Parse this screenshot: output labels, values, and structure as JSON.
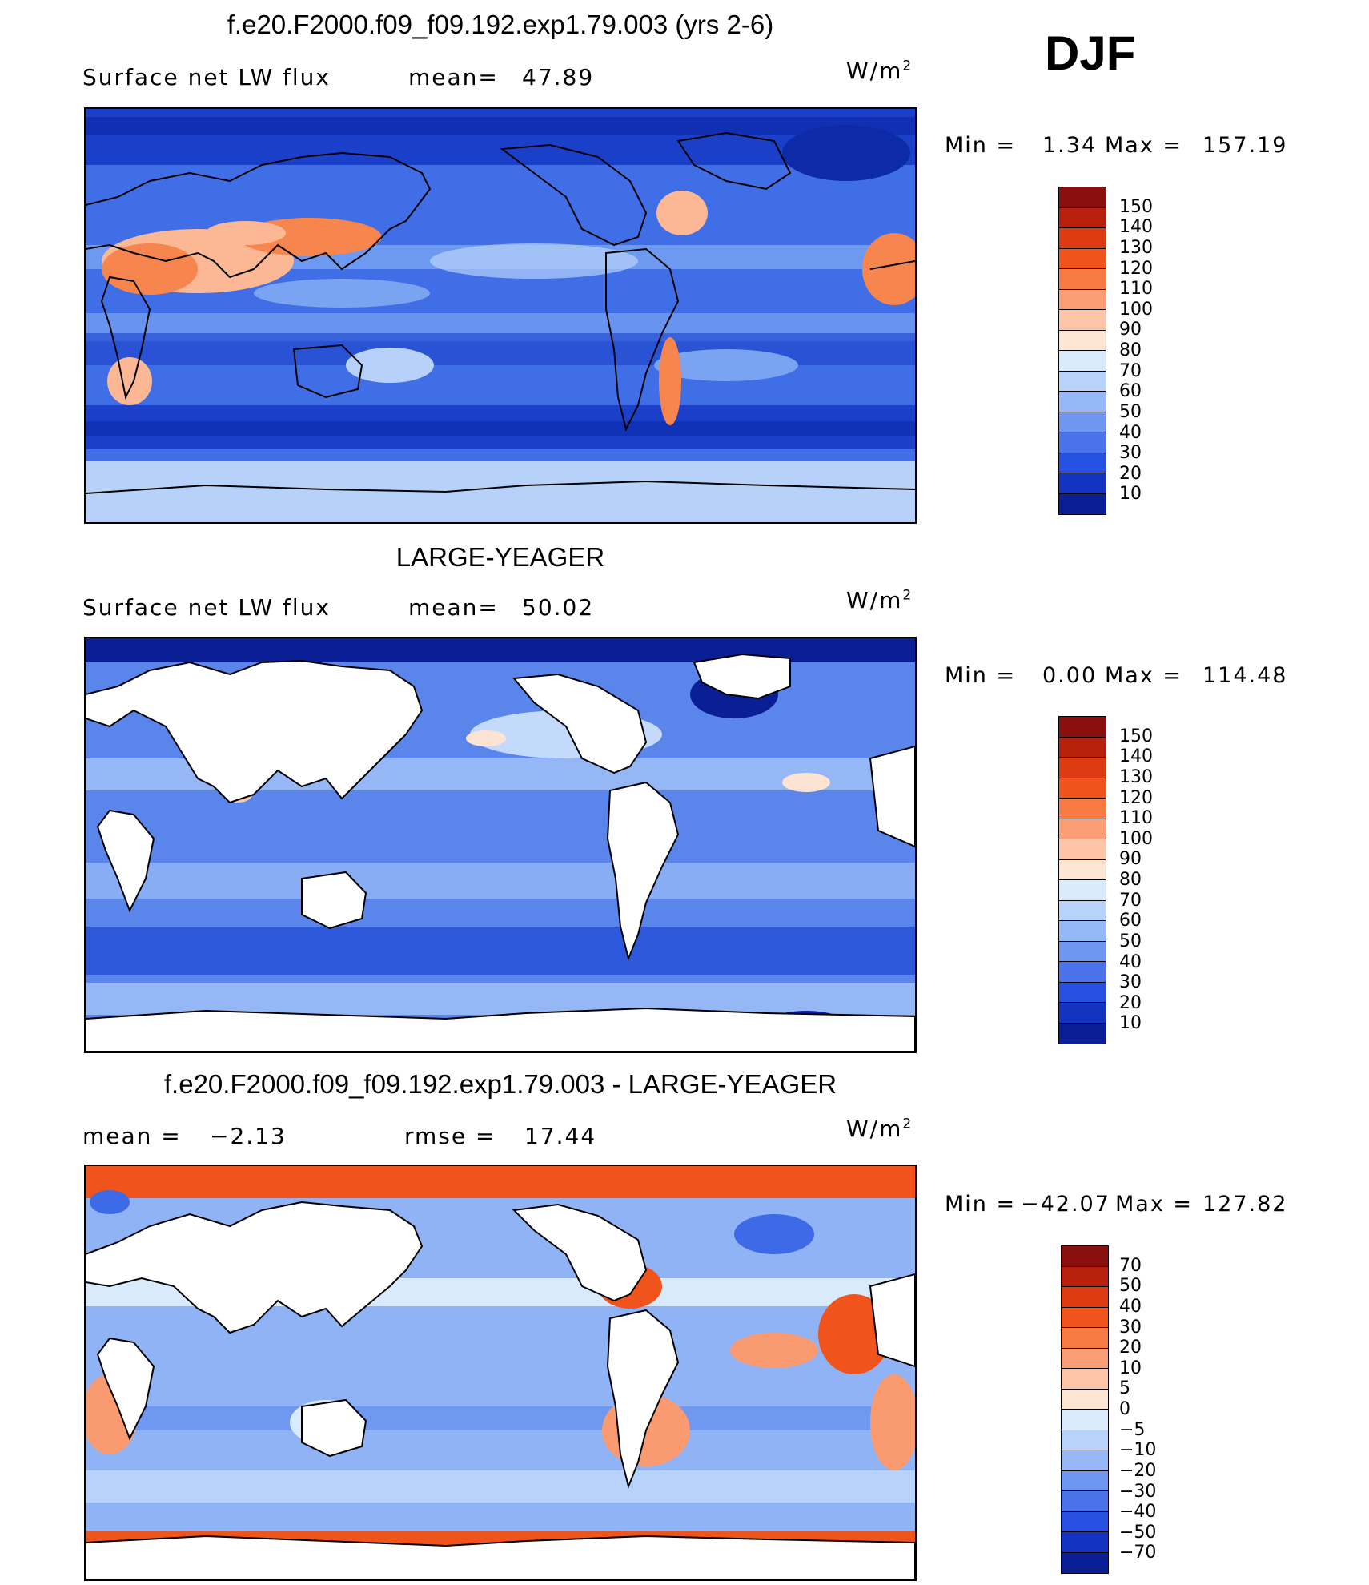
{
  "season": "DJF",
  "panels": [
    {
      "title": "f.e20.F2000.f09_f09.192.exp1.79.003 (yrs 2-6)",
      "left_text": "Surface net LW flux",
      "stat_label": "mean=",
      "stat_value": "47.89",
      "rmse_label": "",
      "rmse_value": "",
      "units": "W/m",
      "units_exp": "2",
      "min_label": "Min =",
      "min_value": "1.34",
      "max_label": "Max =",
      "max_value": "157.19",
      "colorbar_ticks": [
        "150",
        "140",
        "130",
        "120",
        "110",
        "100",
        "90",
        "80",
        "70",
        "60",
        "50",
        "40",
        "30",
        "20",
        "10"
      ],
      "colorbar_colors": [
        "#8a0f0f",
        "#b8200e",
        "#dc3a10",
        "#f0541c",
        "#f77a45",
        "#fb9e76",
        "#fdc4a8",
        "#fde5d4",
        "#d9eafc",
        "#b8d3fb",
        "#96b8f7",
        "#6f96f0",
        "#4a73ea",
        "#2650df",
        "#1433c0",
        "#0a1e96"
      ],
      "map_colors": {
        "base": "#3f6ee6",
        "deep": "#1a3fc8",
        "band": "#7aa4f2",
        "light": "#b7d1fa",
        "hot": "#f7854e",
        "warm": "#fcb795",
        "cold": "#0d2aa8"
      }
    },
    {
      "title": "LARGE-YEAGER",
      "left_text": "Surface net LW flux",
      "stat_label": "mean=",
      "stat_value": "50.02",
      "rmse_label": "",
      "rmse_value": "",
      "units": "W/m",
      "units_exp": "2",
      "min_label": "Min =",
      "min_value": "0.00",
      "max_label": "Max =",
      "max_value": "114.48",
      "colorbar_ticks": [
        "150",
        "140",
        "130",
        "120",
        "110",
        "100",
        "90",
        "80",
        "70",
        "60",
        "50",
        "40",
        "30",
        "20",
        "10"
      ],
      "colorbar_colors": [
        "#8a0f0f",
        "#b8200e",
        "#dc3a10",
        "#f0541c",
        "#f77a45",
        "#fb9e76",
        "#fdc4a8",
        "#fde5d4",
        "#d9eafc",
        "#b8d3fb",
        "#96b8f7",
        "#6f96f0",
        "#4a73ea",
        "#2650df",
        "#1433c0",
        "#0a1e96"
      ],
      "map_colors": {
        "base": "#5a86ec",
        "deep": "#2d58da",
        "band": "#95b7f6",
        "light": "#c4dafb",
        "hot": "#fbc8ad",
        "warm": "#fde3d3",
        "cold": "#0a1e96"
      }
    },
    {
      "title": "f.e20.F2000.f09_f09.192.exp1.79.003 - LARGE-YEAGER",
      "left_text": "",
      "stat_label": "mean =",
      "stat_value": "−2.13",
      "rmse_label": "rmse =",
      "rmse_value": "17.44",
      "units": "W/m",
      "units_exp": "2",
      "min_label": "Min =",
      "min_value": "−42.07",
      "max_label": "Max =",
      "max_value": "127.82",
      "colorbar_ticks": [
        "70",
        "50",
        "40",
        "30",
        "20",
        "10",
        "5",
        "0",
        "−5",
        "−10",
        "−20",
        "−30",
        "−40",
        "−50",
        "−70"
      ],
      "colorbar_colors": [
        "#8a0f0f",
        "#b8200e",
        "#dc3a10",
        "#f0541c",
        "#f77a45",
        "#fb9e76",
        "#fdc4a8",
        "#fde5d4",
        "#d9eafc",
        "#b8d3fb",
        "#96b8f7",
        "#6f96f0",
        "#4a73ea",
        "#2650df",
        "#1433c0",
        "#0a1e96"
      ],
      "map_colors": {
        "base": "#8fb3f5",
        "deep": "#5a86ec",
        "band": "#b8d3fb",
        "light": "#d9eafc",
        "hot": "#f0541c",
        "warm": "#f99a70",
        "cold": "#3d6ae6"
      }
    }
  ]
}
